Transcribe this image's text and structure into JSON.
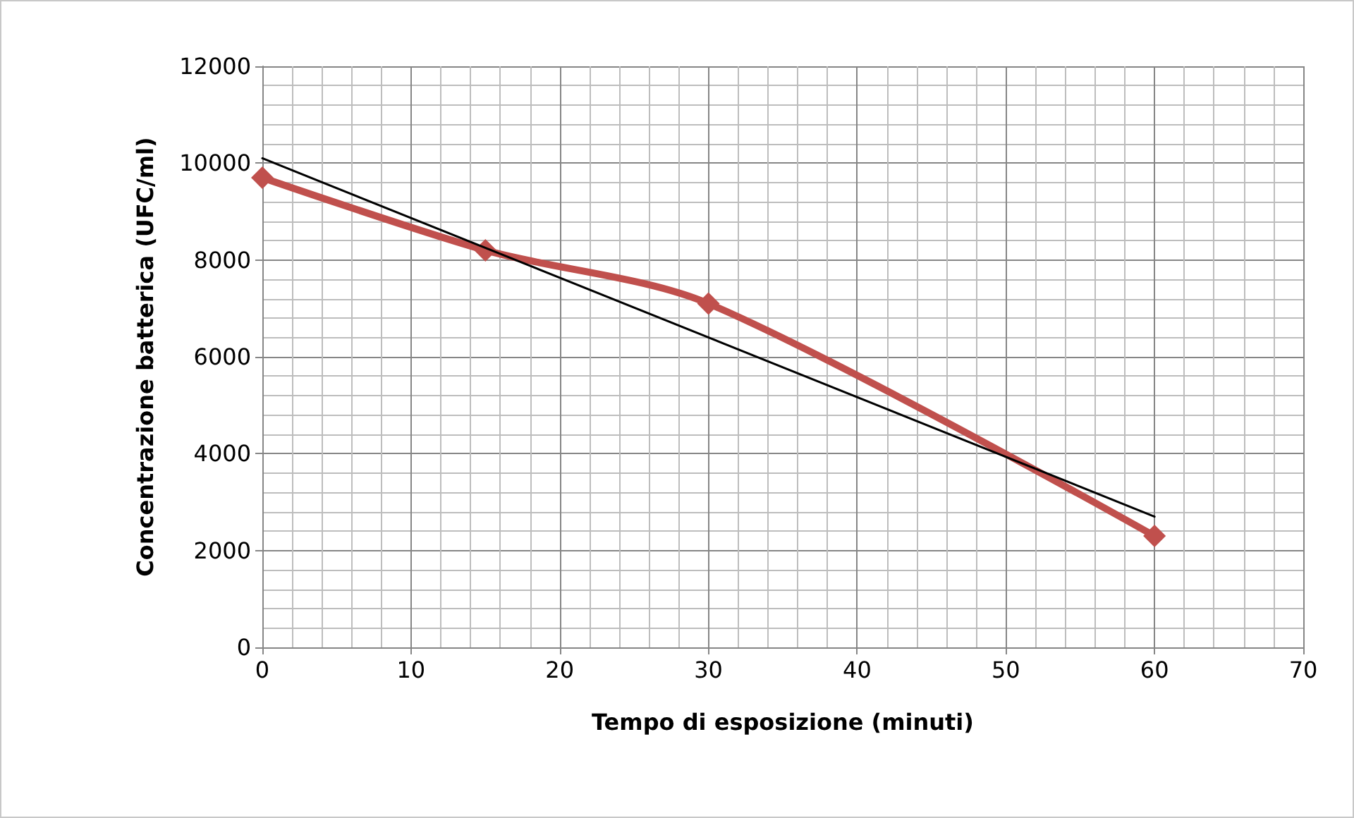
{
  "chart_data": {
    "type": "line",
    "xlabel": "Tempo di esposizione (minuti)",
    "ylabel": "Concentrazione batterica (UFC/ml)",
    "series": [
      {
        "color": "#c0504d",
        "x": [
          0,
          15,
          30,
          60
        ],
        "values": [
          9700,
          8200,
          7100,
          2300
        ],
        "marker": "diamond"
      },
      {
        "color": "#000000",
        "x": [
          0,
          60
        ],
        "values": [
          10100,
          2700
        ],
        "marker": "none"
      }
    ],
    "xlim": [
      0,
      70
    ],
    "xticks": [
      0,
      10,
      20,
      30,
      40,
      50,
      60,
      70
    ],
    "ylim": [
      0,
      12000
    ],
    "yticks": [
      0,
      2000,
      4000,
      6000,
      8000,
      10000,
      12000
    ],
    "grid": true
  }
}
